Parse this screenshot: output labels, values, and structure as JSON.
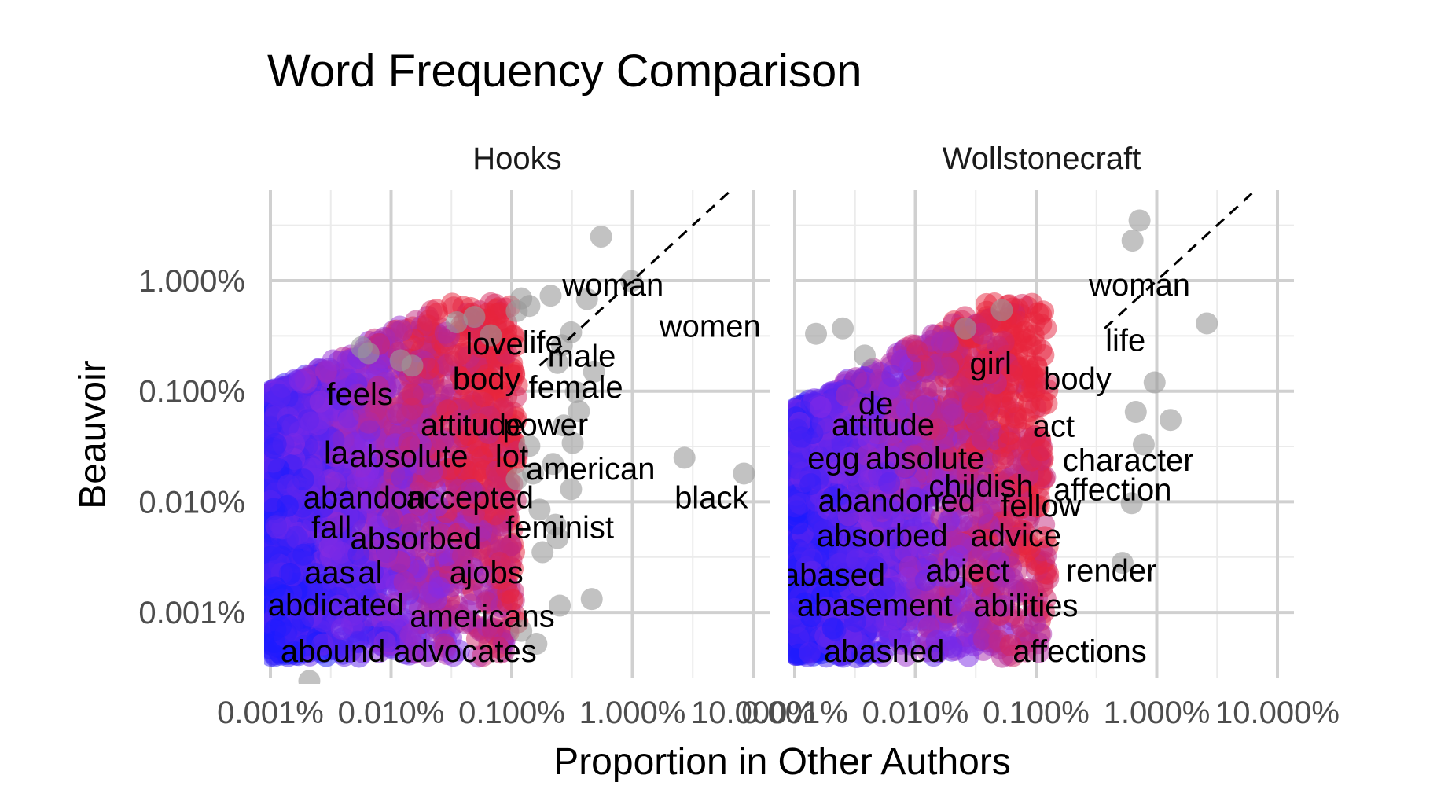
{
  "chart_data": {
    "type": "scatter",
    "title": "Word Frequency Comparison",
    "xlabel": "Proportion in Other Authors",
    "ylabel": "Beauvoir",
    "x_scale": "log10",
    "y_scale": "log10",
    "xlim": [
      1e-05,
      0.1
    ],
    "ylim": [
      3.5e-06,
      0.05
    ],
    "x_ticks": [
      1e-05,
      0.0001,
      0.001,
      0.01,
      0.1
    ],
    "x_tick_labels": [
      "0.001%",
      "0.010%",
      "0.100%",
      "1.000%",
      "10.000%"
    ],
    "y_ticks": [
      1e-05,
      0.0001,
      0.001,
      0.01
    ],
    "y_tick_labels": [
      "0.001%",
      "0.010%",
      "0.100%",
      "1.000%"
    ],
    "reference_line": "y = x (dashed)",
    "color_scale": {
      "low": "#1a1aff",
      "mid": "#8a2be2",
      "high": "#e8243c",
      "outside_range": "#999999"
    },
    "grid": true,
    "panels": [
      {
        "name": "Hooks",
        "labels": [
          {
            "word": "woman",
            "x": 0.0069,
            "y": 0.0092
          },
          {
            "word": "women",
            "x": 0.044,
            "y": 0.0039
          },
          {
            "word": "love",
            "x": 0.00072,
            "y": 0.0027
          },
          {
            "word": "life",
            "x": 0.0018,
            "y": 0.0028
          },
          {
            "word": "male",
            "x": 0.0038,
            "y": 0.0021
          },
          {
            "word": "body",
            "x": 0.00062,
            "y": 0.0013
          },
          {
            "word": "female",
            "x": 0.0034,
            "y": 0.0011
          },
          {
            "word": "feels",
            "x": 5.5e-05,
            "y": 0.00095
          },
          {
            "word": "attitude",
            "x": 0.00047,
            "y": 0.0005
          },
          {
            "word": "power",
            "x": 0.0019,
            "y": 0.0005
          },
          {
            "word": "la",
            "x": 3.5e-05,
            "y": 0.00028
          },
          {
            "word": "absolute",
            "x": 0.00014,
            "y": 0.00026
          },
          {
            "word": "lot",
            "x": 0.001,
            "y": 0.00026
          },
          {
            "word": "american",
            "x": 0.0045,
            "y": 0.0002
          },
          {
            "word": "black",
            "x": 0.045,
            "y": 0.00011
          },
          {
            "word": "abandon",
            "x": 6e-05,
            "y": 0.00011
          },
          {
            "word": "accepted",
            "x": 0.00045,
            "y": 0.00011
          },
          {
            "word": "feminist",
            "x": 0.0025,
            "y": 5.9e-05
          },
          {
            "word": "fall",
            "x": 3.2e-05,
            "y": 5.9e-05
          },
          {
            "word": "absorbed",
            "x": 0.00016,
            "y": 4.7e-05
          },
          {
            "word": "aas",
            "x": 3.1e-05,
            "y": 2.3e-05
          },
          {
            "word": "al",
            "x": 6.72e-05,
            "y": 2.3e-05
          },
          {
            "word": "a",
            "x": 0.00036,
            "y": 2.3e-05
          },
          {
            "word": "jobs",
            "x": 0.00072,
            "y": 2.3e-05
          },
          {
            "word": "abdicated",
            "x": 3.5e-05,
            "y": 1.18e-05
          },
          {
            "word": "americans",
            "x": 0.00057,
            "y": 9.3e-06
          },
          {
            "word": "abound",
            "x": 3.3e-05,
            "y": 4.5e-06
          },
          {
            "word": "advocates",
            "x": 0.00041,
            "y": 4.5e-06
          }
        ]
      },
      {
        "name": "Wollstonecraft",
        "labels": [
          {
            "word": "woman",
            "x": 0.0072,
            "y": 0.0092
          },
          {
            "word": "life",
            "x": 0.0055,
            "y": 0.0029
          },
          {
            "word": "girl",
            "x": 0.00042,
            "y": 0.0018
          },
          {
            "word": "body",
            "x": 0.0022,
            "y": 0.0013
          },
          {
            "word": "de",
            "x": 4.7e-05,
            "y": 0.00078
          },
          {
            "word": "attitude",
            "x": 5.4e-05,
            "y": 0.0005
          },
          {
            "word": "act",
            "x": 0.0014,
            "y": 0.00049
          },
          {
            "word": "egg",
            "x": 2.1e-05,
            "y": 0.00025
          },
          {
            "word": "absolute",
            "x": 0.00012,
            "y": 0.00025
          },
          {
            "word": "character",
            "x": 0.0058,
            "y": 0.00024
          },
          {
            "word": "childish",
            "x": 0.00035,
            "y": 0.00014
          },
          {
            "word": "affection",
            "x": 0.0043,
            "y": 0.00013
          },
          {
            "word": "abandoned",
            "x": 7e-05,
            "y": 0.000103
          },
          {
            "word": "fellow",
            "x": 0.0011,
            "y": 9.3e-05
          },
          {
            "word": "absorbed",
            "x": 5.3e-05,
            "y": 5e-05
          },
          {
            "word": "advice",
            "x": 0.00068,
            "y": 5e-05
          },
          {
            "word": "abased",
            "x": 2.1e-05,
            "y": 2.2e-05
          },
          {
            "word": "abject",
            "x": 0.00027,
            "y": 2.4e-05
          },
          {
            "word": "render",
            "x": 0.0042,
            "y": 2.4e-05
          },
          {
            "word": "abasement",
            "x": 4.6e-05,
            "y": 1.17e-05
          },
          {
            "word": "abilities",
            "x": 0.00082,
            "y": 1.16e-05
          },
          {
            "word": "abashed",
            "x": 5.5e-05,
            "y": 4.5e-06
          },
          {
            "word": "affections",
            "x": 0.0023,
            "y": 4.5e-06
          }
        ],
        "outliers_gray": [
          {
            "x": 0.0072,
            "y": 0.035
          },
          {
            "x": 0.0063,
            "y": 0.023
          },
          {
            "x": 0.026,
            "y": 0.0041
          },
          {
            "x": 1.5e-05,
            "y": 0.0033
          },
          {
            "x": 2.5e-05,
            "y": 0.0037
          },
          {
            "x": 3.8e-05,
            "y": 0.0021
          },
          {
            "x": 0.00026,
            "y": 0.0037
          },
          {
            "x": 0.00052,
            "y": 0.0054
          },
          {
            "x": 0.0096,
            "y": 0.0012
          },
          {
            "x": 0.013,
            "y": 0.00055
          },
          {
            "x": 0.0067,
            "y": 0.00065
          },
          {
            "x": 0.0078,
            "y": 0.00033
          },
          {
            "x": 0.0062,
            "y": 9.7e-05
          },
          {
            "x": 0.0052,
            "y": 2.8e-05
          }
        ]
      }
    ],
    "hooks_outliers_gray": [
      {
        "x": 0.0055,
        "y": 0.025
      },
      {
        "x": 0.0098,
        "y": 0.0099
      },
      {
        "x": 0.0042,
        "y": 0.0068
      },
      {
        "x": 0.0021,
        "y": 0.0073
      },
      {
        "x": 0.0014,
        "y": 0.0059
      },
      {
        "x": 0.0012,
        "y": 0.0069
      },
      {
        "x": 0.0011,
        "y": 0.0053
      },
      {
        "x": 0.00049,
        "y": 0.0047
      },
      {
        "x": 0.00035,
        "y": 0.0042
      },
      {
        "x": 0.0026,
        "y": 0.0026
      },
      {
        "x": 0.0031,
        "y": 0.0034
      },
      {
        "x": 0.0024,
        "y": 0.0018
      },
      {
        "x": 0.0048,
        "y": 0.0015
      },
      {
        "x": 0.0034,
        "y": 0.00098
      },
      {
        "x": 0.0036,
        "y": 0.00066
      },
      {
        "x": 0.0027,
        "y": 0.00049
      },
      {
        "x": 0.0032,
        "y": 0.00034
      },
      {
        "x": 0.0014,
        "y": 0.00032
      },
      {
        "x": 0.0022,
        "y": 0.00022
      },
      {
        "x": 0.0015,
        "y": 0.00018
      },
      {
        "x": 0.0011,
        "y": 0.00016
      },
      {
        "x": 0.0031,
        "y": 0.00013
      },
      {
        "x": 0.027,
        "y": 0.00025
      },
      {
        "x": 0.084,
        "y": 0.00018
      },
      {
        "x": 0.0017,
        "y": 8.5e-05
      },
      {
        "x": 0.0023,
        "y": 6.2e-05
      },
      {
        "x": 0.0024,
        "y": 4.7e-05
      },
      {
        "x": 0.0018,
        "y": 3.5e-05
      },
      {
        "x": 0.0046,
        "y": 1.32e-05
      },
      {
        "x": 0.0025,
        "y": 1.15e-05
      },
      {
        "x": 0.0016,
        "y": 5.2e-06
      },
      {
        "x": 0.0012,
        "y": 6.8e-06
      },
      {
        "x": 2.1e-05,
        "y": 2.4e-06
      },
      {
        "x": 5.7e-05,
        "y": 0.0025
      },
      {
        "x": 6.5e-05,
        "y": 0.0022
      },
      {
        "x": 0.00012,
        "y": 0.0019
      },
      {
        "x": 0.00015,
        "y": 0.0017
      },
      {
        "x": 0.00067,
        "y": 0.0032
      }
    ]
  }
}
